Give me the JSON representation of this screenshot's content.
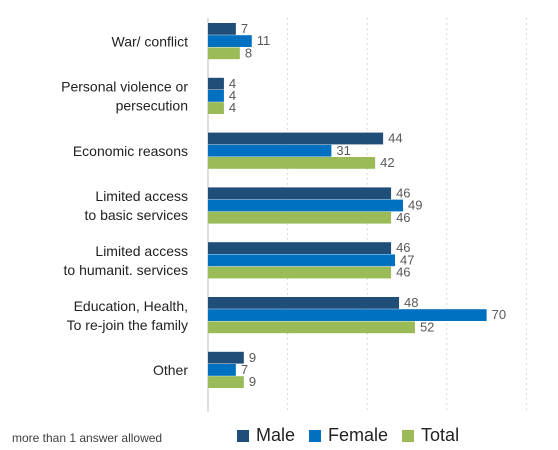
{
  "chart_data": {
    "type": "bar",
    "orientation": "horizontal",
    "categories": [
      [
        "War/ conflict"
      ],
      [
        "Personal violence or",
        "persecution"
      ],
      [
        "Economic reasons"
      ],
      [
        "Limited access",
        "to basic services"
      ],
      [
        "Limited access",
        "to humanit. services"
      ],
      [
        "Education, Health,",
        "To re-join the family"
      ],
      [
        "Other"
      ]
    ],
    "series": [
      {
        "name": "Male",
        "color": "#1f4e79",
        "values": [
          7,
          4,
          44,
          46,
          46,
          48,
          9
        ]
      },
      {
        "name": "Female",
        "color": "#0070c0",
        "values": [
          11,
          4,
          31,
          49,
          47,
          70,
          7
        ]
      },
      {
        "name": "Total",
        "color": "#9bbb59",
        "values": [
          8,
          4,
          42,
          46,
          46,
          52,
          9
        ]
      }
    ],
    "xlim": [
      0,
      80
    ],
    "grid": true,
    "legend_position": "bottom"
  },
  "footnote": "more than 1 answer allowed",
  "legend": {
    "male": "Male",
    "female": "Female",
    "total": "Total"
  }
}
